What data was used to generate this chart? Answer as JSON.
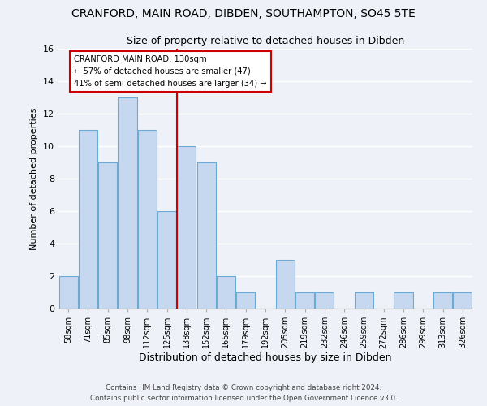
{
  "title": "CRANFORD, MAIN ROAD, DIBDEN, SOUTHAMPTON, SO45 5TE",
  "subtitle": "Size of property relative to detached houses in Dibden",
  "xlabel": "Distribution of detached houses by size in Dibden",
  "ylabel": "Number of detached properties",
  "bin_labels": [
    "58sqm",
    "71sqm",
    "85sqm",
    "98sqm",
    "112sqm",
    "125sqm",
    "138sqm",
    "152sqm",
    "165sqm",
    "179sqm",
    "192sqm",
    "205sqm",
    "219sqm",
    "232sqm",
    "246sqm",
    "259sqm",
    "272sqm",
    "286sqm",
    "299sqm",
    "313sqm",
    "326sqm"
  ],
  "bar_heights": [
    2,
    11,
    9,
    13,
    11,
    6,
    10,
    9,
    2,
    1,
    0,
    3,
    1,
    1,
    0,
    1,
    0,
    1,
    0,
    1,
    1
  ],
  "bar_color": "#c5d8f0",
  "bar_edge_color": "#6aaad4",
  "vline_x": 6.0,
  "vline_color": "#cc0000",
  "annotation_title": "CRANFORD MAIN ROAD: 130sqm",
  "annotation_line1": "← 57% of detached houses are smaller (47)",
  "annotation_line2": "41% of semi-detached houses are larger (34) →",
  "annotation_box_color": "#ffffff",
  "annotation_box_edge": "#cc0000",
  "ylim": [
    0,
    16
  ],
  "yticks": [
    0,
    2,
    4,
    6,
    8,
    10,
    12,
    14,
    16
  ],
  "footer_line1": "Contains HM Land Registry data © Crown copyright and database right 2024.",
  "footer_line2": "Contains public sector information licensed under the Open Government Licence v3.0.",
  "bg_color": "#eef2f8"
}
